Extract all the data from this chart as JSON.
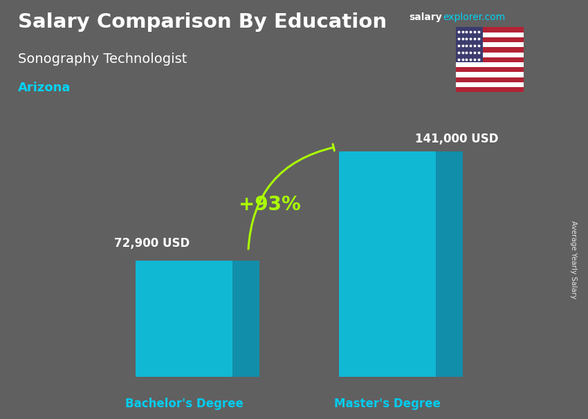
{
  "title_main": "Salary Comparison By Education",
  "title_sub": "Sonography Technologist",
  "title_location": "Arizona",
  "website_salary": "salary",
  "website_rest": "explorer.com",
  "categories": [
    "Bachelor's Degree",
    "Master's Degree"
  ],
  "values": [
    72900,
    141000
  ],
  "value_labels": [
    "72,900 USD",
    "141,000 USD"
  ],
  "pct_change": "+93%",
  "bar_color_front": "#00ccee",
  "bar_color_side": "#0099bb",
  "bar_color_top": "#00eeff",
  "background_color": "#606060",
  "text_color_white": "#ffffff",
  "text_color_cyan": "#00d4f5",
  "text_color_green": "#aaff00",
  "axis_label_color": "#00ccee",
  "ylabel_text": "Average Yearly Salary",
  "ylim": [
    0,
    165000
  ],
  "bar_width": 0.18,
  "figsize": [
    8.5,
    6.06
  ],
  "dpi": 100,
  "flag_stripes_red": "#B22234",
  "flag_stripes_white": "#FFFFFF",
  "flag_blue": "#3C3B6E"
}
